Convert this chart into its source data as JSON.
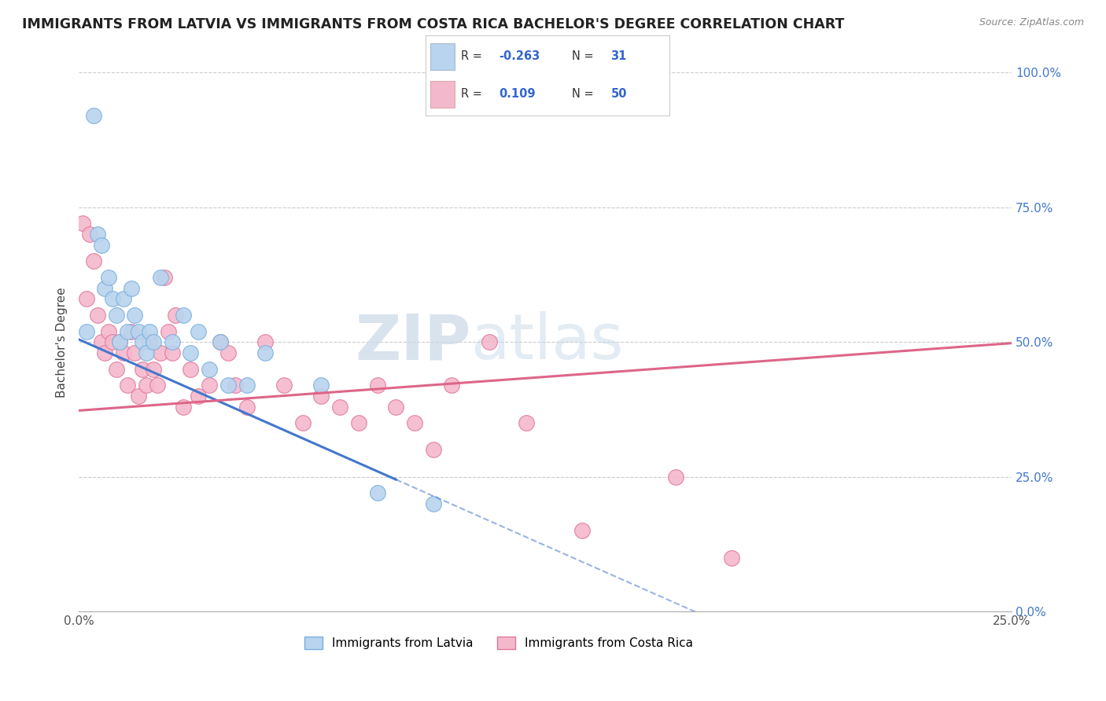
{
  "title": "IMMIGRANTS FROM LATVIA VS IMMIGRANTS FROM COSTA RICA BACHELOR'S DEGREE CORRELATION CHART",
  "source": "Source: ZipAtlas.com",
  "ylabel": "Bachelor's Degree",
  "series": [
    {
      "name": "Immigrants from Latvia",
      "color": "#b8d4ee",
      "edge_color": "#7aaedd",
      "R": -0.263,
      "N": 31,
      "x": [
        0.2,
        0.4,
        0.5,
        0.6,
        0.7,
        0.8,
        0.9,
        1.0,
        1.1,
        1.2,
        1.3,
        1.4,
        1.5,
        1.6,
        1.7,
        1.8,
        1.9,
        2.0,
        2.2,
        2.5,
        2.8,
        3.0,
        3.2,
        3.5,
        3.8,
        4.0,
        4.5,
        5.0,
        6.5,
        8.0,
        9.5
      ],
      "y": [
        0.52,
        0.92,
        0.7,
        0.68,
        0.6,
        0.62,
        0.58,
        0.55,
        0.5,
        0.58,
        0.52,
        0.6,
        0.55,
        0.52,
        0.5,
        0.48,
        0.52,
        0.5,
        0.62,
        0.5,
        0.55,
        0.48,
        0.52,
        0.45,
        0.5,
        0.42,
        0.42,
        0.48,
        0.42,
        0.22,
        0.2
      ]
    },
    {
      "name": "Immigrants from Costa Rica",
      "color": "#f4b8cc",
      "edge_color": "#e0789a",
      "R": 0.109,
      "N": 50,
      "x": [
        0.1,
        0.2,
        0.3,
        0.4,
        0.5,
        0.6,
        0.7,
        0.8,
        0.9,
        1.0,
        1.1,
        1.2,
        1.3,
        1.4,
        1.5,
        1.6,
        1.7,
        1.8,
        1.9,
        2.0,
        2.1,
        2.2,
        2.3,
        2.4,
        2.5,
        2.6,
        2.8,
        3.0,
        3.2,
        3.5,
        3.8,
        4.0,
        4.2,
        4.5,
        5.0,
        5.5,
        6.0,
        6.5,
        7.0,
        7.5,
        8.0,
        8.5,
        9.0,
        9.5,
        10.0,
        11.0,
        12.0,
        13.5,
        16.0,
        17.5
      ],
      "y": [
        0.72,
        0.58,
        0.7,
        0.65,
        0.55,
        0.5,
        0.48,
        0.52,
        0.5,
        0.45,
        0.5,
        0.48,
        0.42,
        0.52,
        0.48,
        0.4,
        0.45,
        0.42,
        0.5,
        0.45,
        0.42,
        0.48,
        0.62,
        0.52,
        0.48,
        0.55,
        0.38,
        0.45,
        0.4,
        0.42,
        0.5,
        0.48,
        0.42,
        0.38,
        0.5,
        0.42,
        0.35,
        0.4,
        0.38,
        0.35,
        0.42,
        0.38,
        0.35,
        0.3,
        0.42,
        0.5,
        0.35,
        0.15,
        0.25,
        0.1
      ]
    }
  ],
  "xlim": [
    0,
    25.0
  ],
  "ylim": [
    0,
    1.0
  ],
  "yticks": [
    0,
    0.25,
    0.5,
    0.75,
    1.0
  ],
  "ytick_labels": [
    "0.0%",
    "25.0%",
    "50.0%",
    "75.0%",
    "100.0%"
  ],
  "xticks": [
    0,
    25.0
  ],
  "xtick_labels": [
    "0.0%",
    "25.0%"
  ],
  "watermark_zip": "ZIP",
  "watermark_atlas": "atlas",
  "legend_R_color": "#3366cc",
  "legend_box_color_1": "#b8d4ee",
  "legend_box_color_2": "#f4b8cc",
  "trend_color_1": "#4477cc",
  "trend_color_2": "#dd6688",
  "grid_color": "#cccccc",
  "background_color": "#ffffff",
  "title_color": "#222222",
  "title_fontsize": 12.5,
  "source_fontsize": 9,
  "trend_line_1_x0": 0.0,
  "trend_line_1_y0": 0.505,
  "trend_line_1_x1": 8.5,
  "trend_line_1_y1": 0.245,
  "trend_line_2_x0": 0.0,
  "trend_line_2_y0": 0.373,
  "trend_line_2_x1": 25.0,
  "trend_line_2_y1": 0.498
}
